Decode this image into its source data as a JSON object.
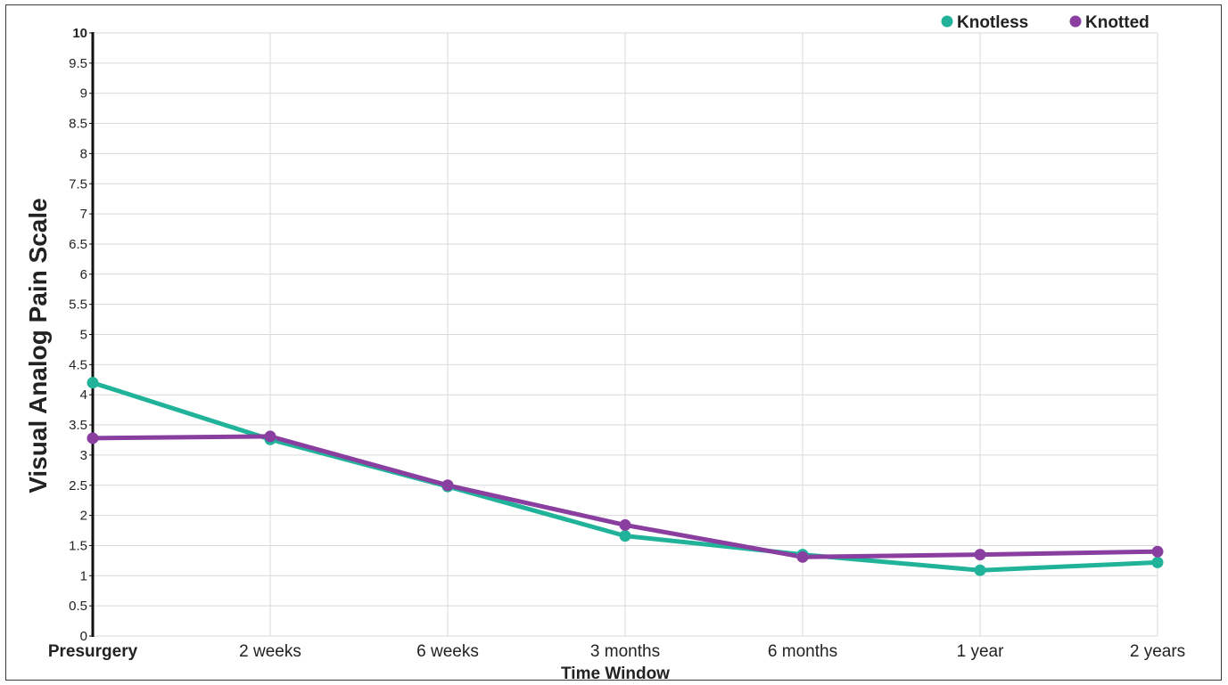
{
  "chart_data": {
    "type": "line",
    "xlabel": "Time Window",
    "ylabel": "Visual Analog Pain Scale",
    "categories": [
      "Presurgery",
      "2 weeks",
      "6 weeks",
      "3 months",
      "6 months",
      "1 year",
      "2 years"
    ],
    "ylim": [
      0,
      10
    ],
    "yticks": [
      "0",
      "0.5",
      "1",
      "1.5",
      "2",
      "2.5",
      "3",
      "3.5",
      "4",
      "4.5",
      "5",
      "5.5",
      "6",
      "6.5",
      "7",
      "7.5",
      "8",
      "8.5",
      "9",
      "9.5",
      "10"
    ],
    "grid": true,
    "legend_position": "top-right",
    "series": [
      {
        "name": "Knotless",
        "color": "#20b39a",
        "values": [
          4.2,
          3.26,
          2.48,
          1.66,
          1.35,
          1.09,
          1.22
        ]
      },
      {
        "name": "Knotted",
        "color": "#8a3fa0",
        "values": [
          3.28,
          3.31,
          2.5,
          1.84,
          1.31,
          1.35,
          1.4
        ]
      }
    ]
  }
}
